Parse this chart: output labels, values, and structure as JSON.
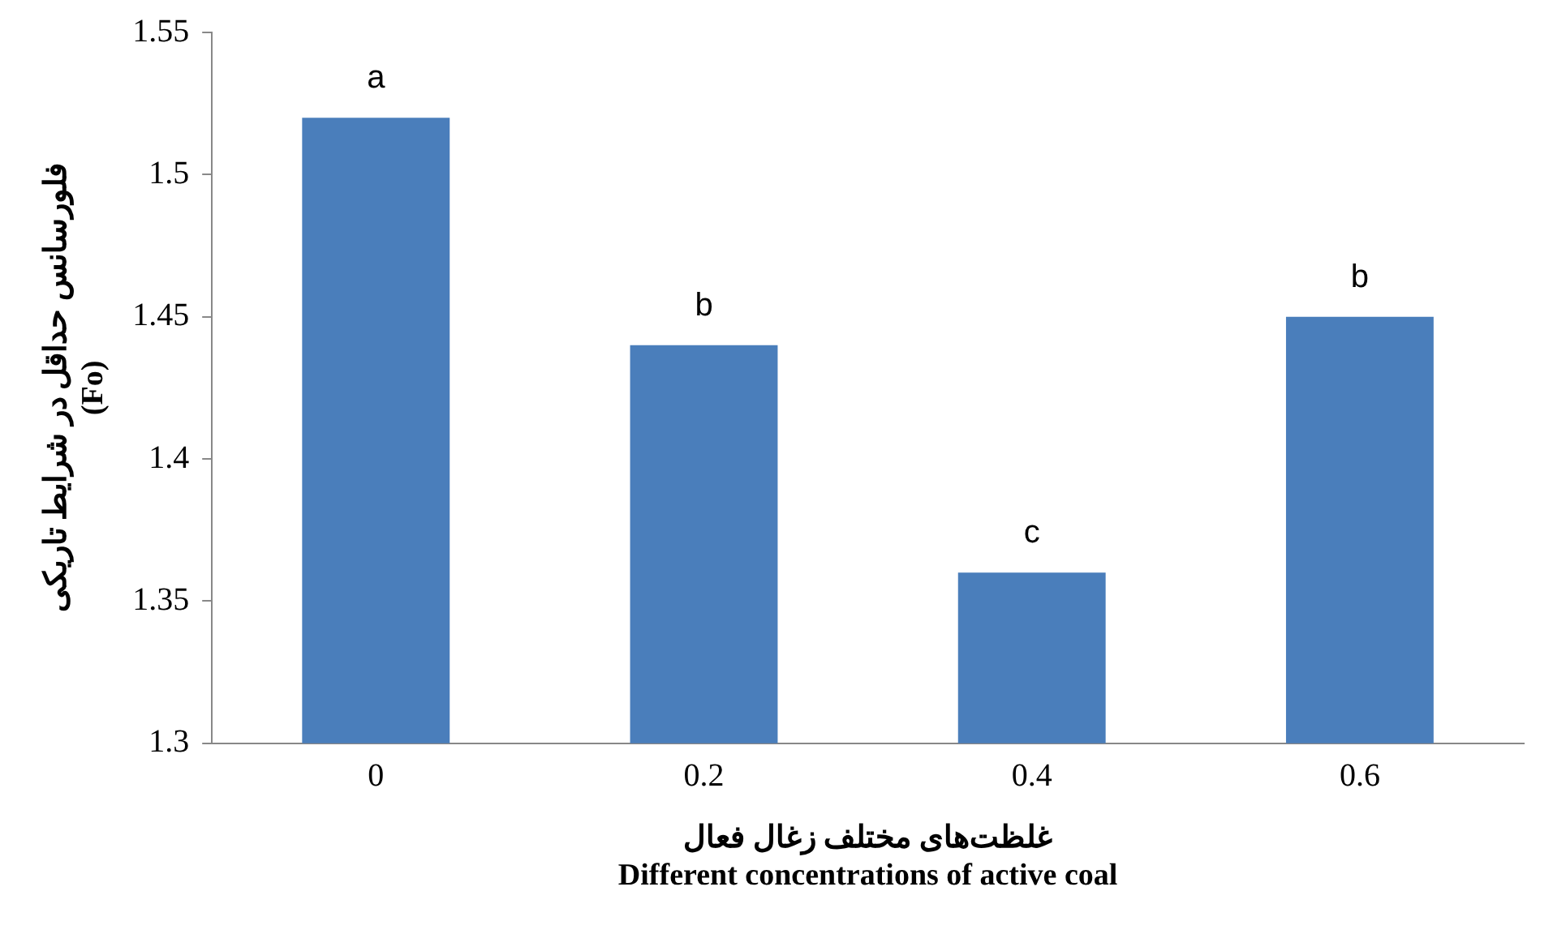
{
  "chart_data": {
    "type": "bar",
    "categories": [
      "0",
      "0.2",
      "0.4",
      "0.6"
    ],
    "values": [
      1.52,
      1.44,
      1.36,
      1.45
    ],
    "color": "#4a7ebb",
    "ylim": [
      1.3,
      1.55
    ],
    "yticks": [
      1.3,
      1.35,
      1.4,
      1.45,
      1.5,
      1.55
    ],
    "ylabel": "فلورسانس حداقل در شرایط تاریکی\n(Fo)",
    "xlabel": "غلظت‌های مختلف زغال فعال\nDifferent concentrations of active coal",
    "grid": false,
    "legend": false,
    "annotations": [
      {
        "text": "a",
        "x": "0",
        "y": 1.52
      },
      {
        "text": "b",
        "x": "0.2",
        "y": 1.44
      },
      {
        "text": "c",
        "x": "0.4",
        "y": 1.36
      },
      {
        "text": "b",
        "x": "0.6",
        "y": 1.45
      }
    ]
  }
}
